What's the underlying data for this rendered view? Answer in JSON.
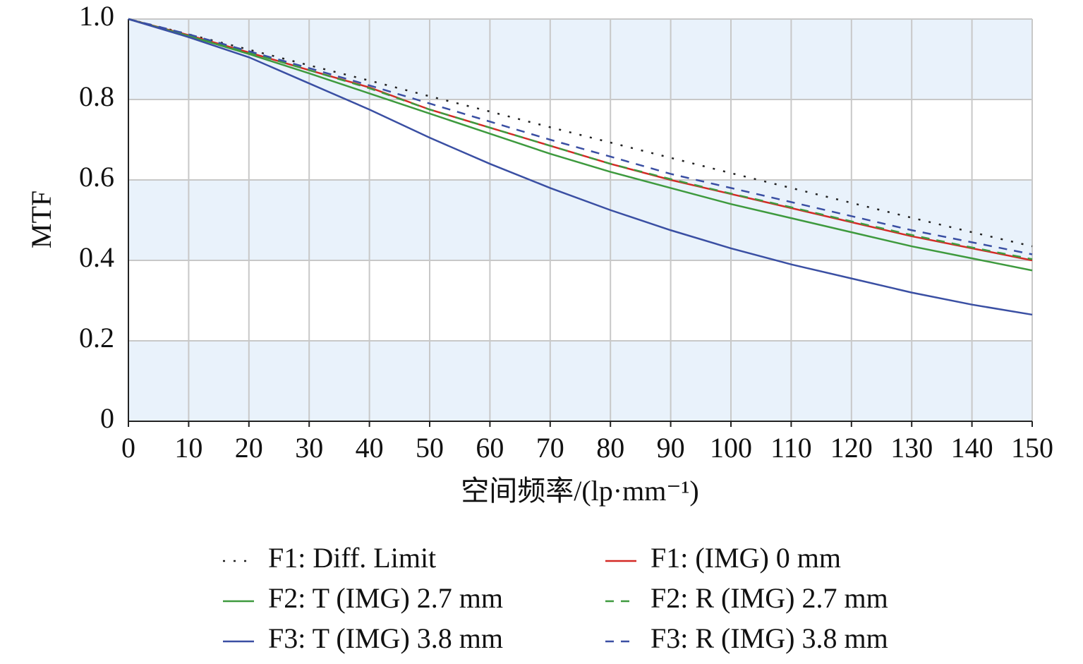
{
  "chart_data": {
    "type": "line",
    "xlabel": "空间频率/(lp·mm⁻¹)",
    "ylabel": "MTF",
    "x": [
      0,
      10,
      20,
      30,
      40,
      50,
      60,
      70,
      80,
      90,
      100,
      110,
      120,
      130,
      140,
      150
    ],
    "xlim": [
      0,
      150
    ],
    "xticks": [
      0,
      10,
      20,
      30,
      40,
      50,
      60,
      70,
      80,
      90,
      100,
      110,
      120,
      130,
      140,
      150
    ],
    "ylim": [
      0,
      1
    ],
    "yticks": [
      0,
      0.2,
      0.4,
      0.6,
      0.8,
      {
        "value": 1,
        "label": "1.0"
      }
    ],
    "grid": true,
    "band_color": "#e9f2fb",
    "series": [
      {
        "name": "F1: Diff. Limit",
        "color": "#222222",
        "style": "dotted",
        "values": [
          1,
          0.962,
          0.924,
          0.885,
          0.847,
          0.808,
          0.77,
          0.731,
          0.693,
          0.655,
          0.617,
          0.58,
          0.543,
          0.506,
          0.47,
          0.435
        ]
      },
      {
        "name": "F1: (IMG) 0 mm",
        "color": "#d42a25",
        "style": "solid",
        "values": [
          1,
          0.96,
          0.917,
          0.873,
          0.83,
          0.775,
          0.73,
          0.685,
          0.64,
          0.6,
          0.565,
          0.53,
          0.495,
          0.46,
          0.43,
          0.4
        ]
      },
      {
        "name": "F2: T (IMG) 2.7 mm",
        "color": "#3e9a3e",
        "style": "solid",
        "values": [
          1,
          0.958,
          0.913,
          0.865,
          0.815,
          0.765,
          0.715,
          0.665,
          0.62,
          0.58,
          0.54,
          0.505,
          0.47,
          0.435,
          0.405,
          0.375
        ]
      },
      {
        "name": "F2: R (IMG) 2.7 mm",
        "color": "#3e9a3e",
        "style": "dashed",
        "values": [
          1,
          0.96,
          0.917,
          0.873,
          0.828,
          0.775,
          0.73,
          0.685,
          0.64,
          0.602,
          0.566,
          0.532,
          0.497,
          0.463,
          0.432,
          0.403
        ]
      },
      {
        "name": "F3: T (IMG) 3.8 mm",
        "color": "#3a4fa3",
        "style": "solid",
        "values": [
          1,
          0.955,
          0.905,
          0.84,
          0.775,
          0.705,
          0.64,
          0.58,
          0.525,
          0.475,
          0.43,
          0.39,
          0.355,
          0.32,
          0.29,
          0.265
        ]
      },
      {
        "name": "F3: R (IMG) 3.8 mm",
        "color": "#3a4fa3",
        "style": "dashed",
        "values": [
          1,
          0.962,
          0.92,
          0.878,
          0.835,
          0.79,
          0.745,
          0.7,
          0.658,
          0.615,
          0.58,
          0.545,
          0.51,
          0.475,
          0.445,
          0.415
        ]
      }
    ]
  }
}
